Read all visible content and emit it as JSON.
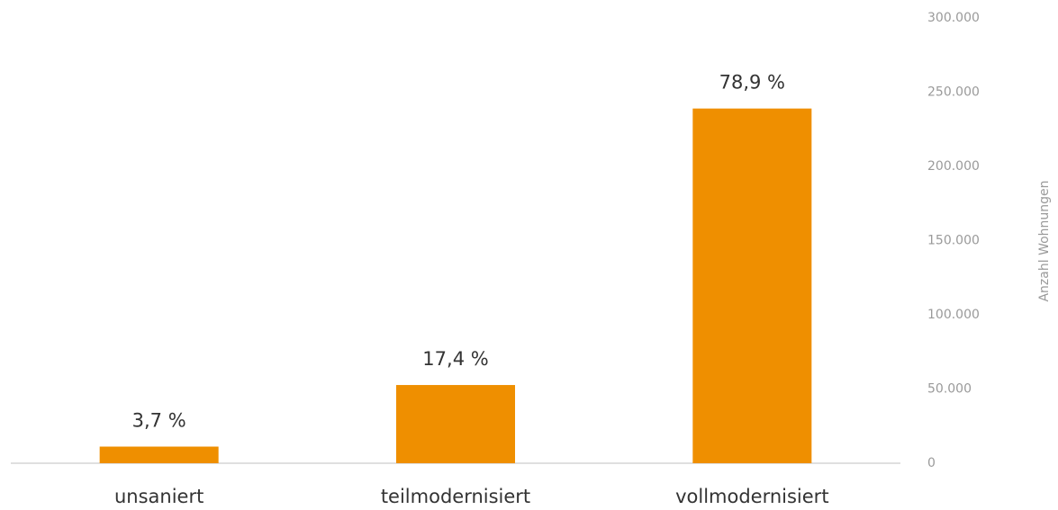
{
  "chart_data": {
    "type": "bar",
    "categories": [
      "unsaniert",
      "teilmodernisiert",
      "vollmodernisiert"
    ],
    "values": [
      11200,
      52700,
      239000
    ],
    "shares": [
      3.7,
      17.4,
      78.9
    ],
    "share_labels": [
      "3,7 %",
      "17,4 %",
      "78,9 %"
    ],
    "color": "#ef8f00",
    "y_axis_label": "Anzahl Wohnungen",
    "y_axis_side": "right",
    "ylim": [
      0,
      300000
    ],
    "yticks": [
      0,
      {
        "value": 50000,
        "label": "50.000"
      },
      {
        "value": 100000,
        "label": "100.000"
      },
      {
        "value": 150000,
        "label": "150.000"
      },
      {
        "value": 200000,
        "label": "200.000"
      },
      {
        "value": 250000,
        "label": "250.000"
      },
      {
        "value": 300000,
        "label": "300.000"
      }
    ],
    "grid": false
  }
}
